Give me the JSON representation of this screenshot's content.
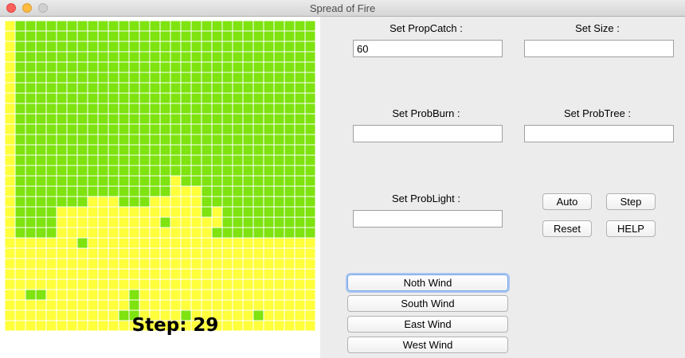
{
  "window": {
    "title": "Spread of Fire"
  },
  "simulation": {
    "step_label": "Step: 29",
    "rows": 30,
    "cols": 30,
    "colors": {
      "tree": "#7ee30f",
      "empty": "#ffff3b",
      "border": "#ffffff"
    },
    "tree_row_ranges": {
      "0": [
        [
          1,
          29
        ]
      ],
      "1": [
        [
          1,
          29
        ]
      ],
      "2": [
        [
          1,
          29
        ]
      ],
      "3": [
        [
          1,
          29
        ]
      ],
      "4": [
        [
          1,
          29
        ]
      ],
      "5": [
        [
          1,
          29
        ]
      ],
      "6": [
        [
          1,
          29
        ]
      ],
      "7": [
        [
          1,
          29
        ]
      ],
      "8": [
        [
          1,
          29
        ]
      ],
      "9": [
        [
          1,
          29
        ]
      ],
      "10": [
        [
          1,
          29
        ]
      ],
      "11": [
        [
          1,
          29
        ]
      ],
      "12": [
        [
          1,
          29
        ]
      ],
      "13": [
        [
          1,
          29
        ]
      ],
      "14": [
        [
          1,
          29
        ]
      ],
      "15": [
        [
          1,
          15
        ],
        [
          17,
          29
        ]
      ],
      "16": [
        [
          1,
          15
        ],
        [
          19,
          29
        ]
      ],
      "17": [
        [
          1,
          7
        ],
        [
          11,
          13
        ],
        [
          19,
          29
        ]
      ],
      "18": [
        [
          1,
          4
        ],
        [
          19,
          19
        ],
        [
          21,
          29
        ]
      ],
      "19": [
        [
          1,
          4
        ],
        [
          15,
          15
        ],
        [
          21,
          29
        ]
      ],
      "20": [
        [
          1,
          4
        ],
        [
          20,
          29
        ]
      ],
      "21": [
        [
          7,
          7
        ]
      ],
      "26": [
        [
          2,
          3
        ],
        [
          12,
          12
        ]
      ],
      "27": [
        [
          12,
          12
        ]
      ],
      "28": [
        [
          11,
          12
        ],
        [
          17,
          17
        ],
        [
          24,
          24
        ]
      ]
    }
  },
  "controls": {
    "prop_catch": {
      "label": "Set PropCatch :",
      "value": "60",
      "placeholder": ""
    },
    "size": {
      "label": "Set Size :",
      "value": "",
      "placeholder": ""
    },
    "prob_burn": {
      "label": "Set ProbBurn :",
      "value": "",
      "placeholder": ""
    },
    "prob_tree": {
      "label": "Set ProbTree :",
      "value": "",
      "placeholder": ""
    },
    "prob_light": {
      "label": "Set ProbLight :",
      "value": "",
      "placeholder": ""
    }
  },
  "buttons": {
    "auto": "Auto",
    "step": "Step",
    "reset": "Reset",
    "help": "HELP",
    "north_wind": "Noth Wind",
    "south_wind": "South Wind",
    "east_wind": "East Wind",
    "west_wind": "West Wind"
  }
}
